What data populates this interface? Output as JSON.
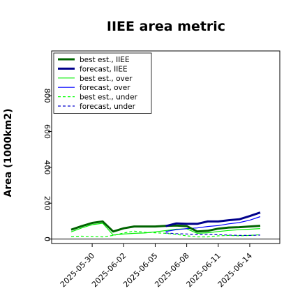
{
  "chart_data": {
    "type": "line",
    "title": "IIEE area metric",
    "xlabel": "",
    "ylabel": "Area (1000km2)",
    "x": [
      "2025-05-28",
      "2025-05-29",
      "2025-05-30",
      "2025-05-31",
      "2025-06-01",
      "2025-06-02",
      "2025-06-03",
      "2025-06-04",
      "2025-06-05",
      "2025-06-06",
      "2025-06-07",
      "2025-06-08",
      "2025-06-09",
      "2025-06-10",
      "2025-06-11",
      "2025-06-12",
      "2025-06-13",
      "2025-06-14",
      "2025-06-15"
    ],
    "x_ticks": [
      "2025-05-30",
      "2025-06-02",
      "2025-06-05",
      "2025-06-08",
      "2025-06-11",
      "2025-06-14"
    ],
    "highlight_tick": "2025-06-05",
    "highlight_color": "#228b22",
    "yticks": [
      "0",
      "200",
      "400",
      "600",
      "800"
    ],
    "ylim": [
      -25,
      1050
    ],
    "grid": false,
    "legend_position": "top-left",
    "series": [
      {
        "name": "best est., IIEE",
        "color": "#006400",
        "dash": "solid",
        "width": 3,
        "values": [
          52,
          72,
          90,
          98,
          42,
          60,
          70,
          70,
          70,
          73,
          75,
          72,
          42,
          46,
          58,
          64,
          66,
          70,
          74
        ]
      },
      {
        "name": "forecast, IIEE",
        "color": "#00008b",
        "dash": "solid",
        "width": 3,
        "values": [
          null,
          null,
          null,
          null,
          null,
          null,
          null,
          null,
          null,
          72,
          87,
          85,
          85,
          98,
          98,
          105,
          110,
          128,
          148
        ]
      },
      {
        "name": "best est., over",
        "color": "#00ee00",
        "dash": "solid",
        "width": 1.2,
        "values": [
          40,
          62,
          80,
          88,
          22,
          28,
          32,
          34,
          40,
          47,
          55,
          57,
          32,
          35,
          42,
          48,
          52,
          55,
          58
        ]
      },
      {
        "name": "forecast, over",
        "color": "#0000ff",
        "dash": "solid",
        "width": 1.2,
        "values": [
          null,
          null,
          null,
          null,
          null,
          null,
          null,
          null,
          null,
          42,
          52,
          58,
          62,
          70,
          75,
          85,
          92,
          105,
          125
        ]
      },
      {
        "name": "best est., under",
        "color": "#00ff00",
        "dash": "dashed",
        "width": 1.2,
        "values": [
          14,
          16,
          14,
          12,
          20,
          34,
          44,
          38,
          35,
          32,
          26,
          18,
          12,
          12,
          18,
          20,
          18,
          20,
          24
        ]
      },
      {
        "name": "forecast, under",
        "color": "#0000cd",
        "dash": "dashed",
        "width": 1.2,
        "values": [
          null,
          null,
          null,
          null,
          null,
          null,
          null,
          null,
          null,
          34,
          30,
          28,
          24,
          26,
          24,
          22,
          20,
          20,
          22
        ]
      }
    ]
  }
}
